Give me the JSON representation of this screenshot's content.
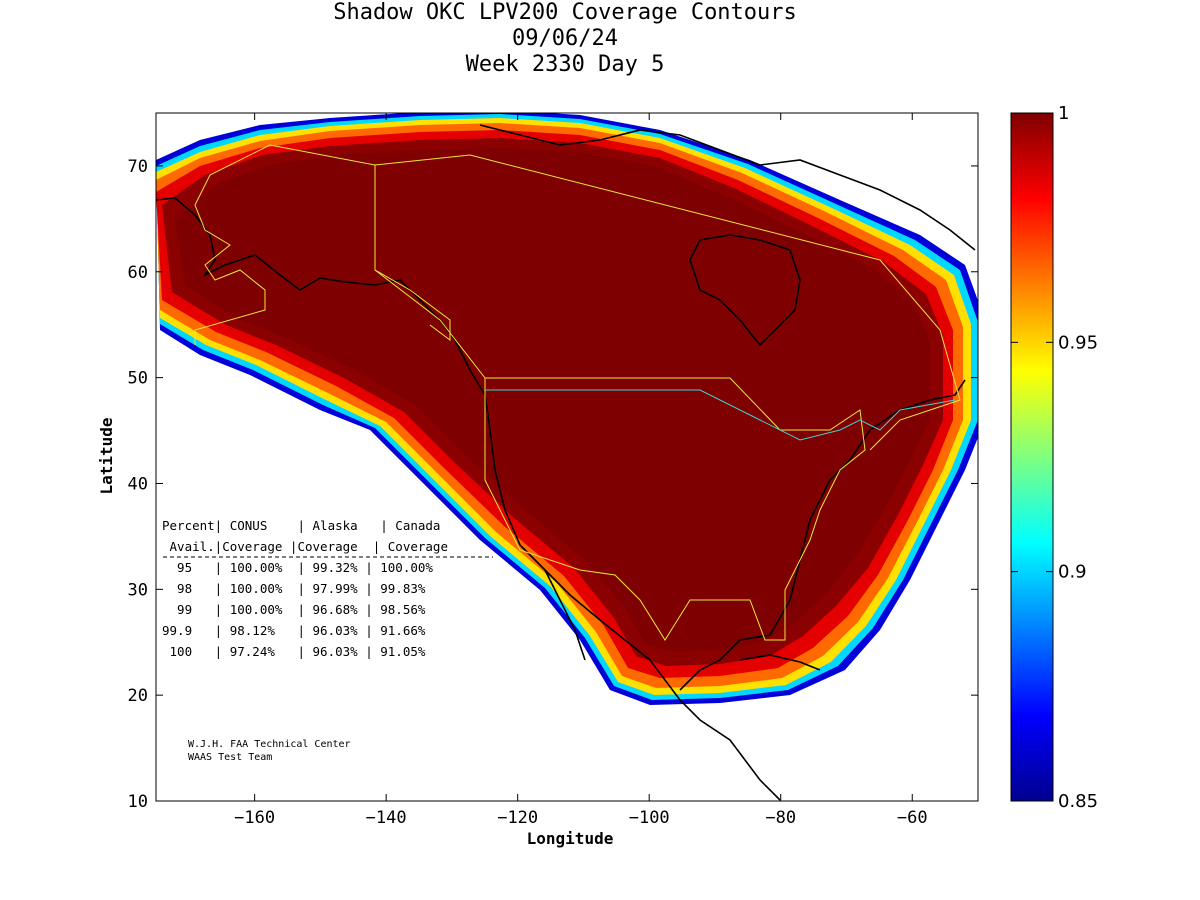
{
  "title": {
    "line1": "Shadow OKC LPV200 Coverage Contours",
    "line2": "09/06/24",
    "line3": "Week 2330 Day 5"
  },
  "axes": {
    "xlabel": "Longitude",
    "ylabel": "Latitude",
    "xlim": [
      -175,
      -50
    ],
    "ylim": [
      10,
      75
    ],
    "xticks": [
      -160,
      -140,
      -120,
      -100,
      -80,
      -60
    ],
    "yticks": [
      10,
      20,
      30,
      40,
      50,
      60,
      70
    ]
  },
  "colorbar": {
    "min": 0.85,
    "max": 1,
    "ticks": [
      "1",
      "0.95",
      "0.9",
      "0.85"
    ],
    "colormap": "jet"
  },
  "stats_table": {
    "header1": "Percent| CONUS    | Alaska   | Canada",
    "header2": " Avail.|Coverage |Coverage  | Coverage",
    "rows": [
      "  95   | 100.00%  | 99.32% | 100.00%",
      "  98   | 100.00%  | 97.99% | 99.83%",
      "  99   | 100.00%  | 96.68% | 98.56%",
      "99.9   | 98.12%   | 96.03% | 91.66%",
      " 100   | 97.24%   | 96.03% | 91.05%"
    ]
  },
  "credit": {
    "line1": "W.J.H. FAA Technical Center",
    "line2": "WAAS Test Team"
  },
  "chart_data": {
    "type": "heatmap",
    "title": "Shadow OKC LPV200 Coverage Contours",
    "xlabel": "Longitude",
    "ylabel": "Latitude",
    "xlim": [
      -175,
      -50
    ],
    "ylim": [
      10,
      75
    ],
    "color_range": [
      0.85,
      1
    ],
    "description_values": {
      "interior_value": 1.0,
      "edge_value": 0.85
    }
  }
}
